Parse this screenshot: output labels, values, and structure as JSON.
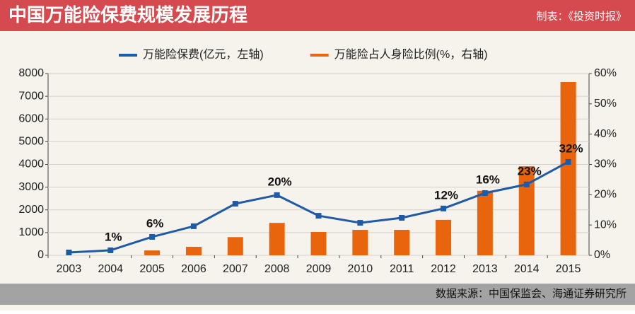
{
  "chart_data": {
    "type": "combo",
    "title": "中国万能险保费规模发展历程",
    "subtitle": "制表：《投资时报》",
    "source": "数据来源：中国保监会、海通证券研究所",
    "categories": [
      "2003",
      "2004",
      "2005",
      "2006",
      "2007",
      "2008",
      "2009",
      "2010",
      "2011",
      "2012",
      "2013",
      "2014",
      "2015"
    ],
    "series": [
      {
        "name": "万能险保费(亿元，左轴)",
        "color": "#1f5aa6",
        "kind": "line",
        "values": [
          125,
          220,
          810,
          1280,
          2270,
          2650,
          1740,
          1430,
          1650,
          2060,
          2740,
          3120,
          4110
        ]
      },
      {
        "name": "万能险占人身险比例(%，右轴)",
        "color": "#e8650e",
        "kind": "bar",
        "axis": "y2",
        "values": [
          null,
          null,
          1.6,
          2.8,
          6,
          10.7,
          7.7,
          8.4,
          8.4,
          11.7,
          21.3,
          29.4,
          57.2
        ]
      }
    ],
    "point_labels": [
      null,
      "1%",
      "6%",
      null,
      null,
      "20%",
      null,
      null,
      null,
      "12%",
      "16%",
      "23%",
      "32%"
    ],
    "ylim": [
      0,
      8000
    ],
    "yticks": [
      0,
      1000,
      2000,
      3000,
      4000,
      5000,
      6000,
      7000,
      8000
    ],
    "y2lim": [
      0,
      60
    ],
    "y2ticks": [
      {
        "value": 0,
        "label": "0%"
      },
      {
        "value": 10,
        "label": "10%"
      },
      {
        "value": 20,
        "label": "20%"
      },
      {
        "value": 30,
        "label": "30%"
      },
      {
        "value": 40,
        "label": "40%"
      },
      {
        "value": 50,
        "label": "50%"
      },
      {
        "value": 60,
        "label": "60%"
      }
    ],
    "grid": true
  }
}
